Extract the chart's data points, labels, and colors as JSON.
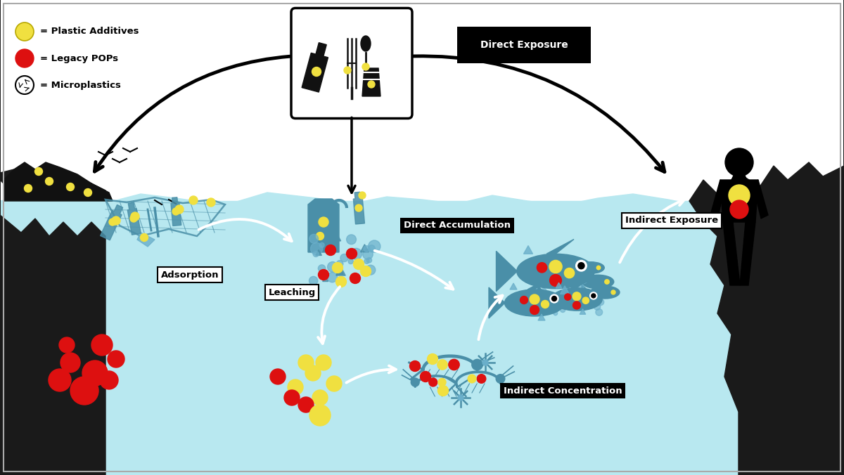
{
  "bg_color": "#ffffff",
  "water_color": "#b8e8f0",
  "black_color": "#1a1a1a",
  "teal_color": "#4a8fa8",
  "teal_light": "#6aafca",
  "yellow_color": "#f0e040",
  "yellow_edge": "#b8a800",
  "red_color": "#dd1010",
  "white_color": "#ffffff",
  "label_bg": "#111111",
  "label_fg": "#ffffff",
  "arrow_dark": "#222222",
  "figsize": [
    12.0,
    6.76
  ],
  "dpi": 100,
  "labels": {
    "direct_exposure": "Direct Exposure",
    "direct_accumulation": "Direct Accumulation",
    "indirect_exposure": "Indirect Exposure",
    "adsorption": "Adsorption",
    "leaching": "Leaching",
    "indirect_concentration": "Indirect Concentration",
    "plastic_additives": "= Plastic Additives",
    "legacy_pops": "= Legacy POPs",
    "microplastics": "= Microplastics"
  }
}
